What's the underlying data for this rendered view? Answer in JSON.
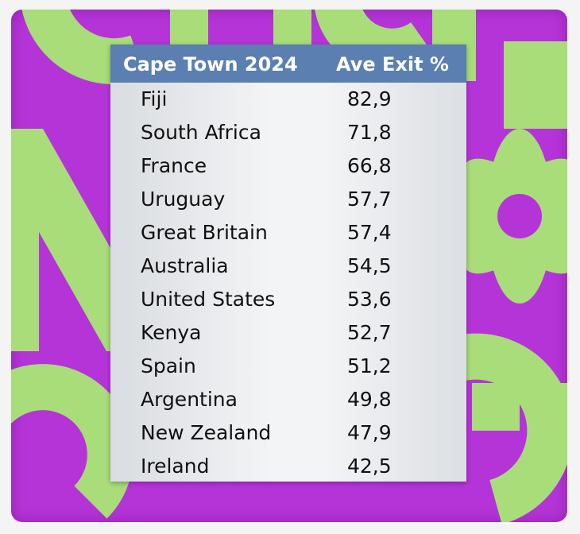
{
  "chart_data": {
    "type": "table",
    "columns": [
      "Cape Town 2024",
      "Ave Exit %"
    ],
    "rows": [
      {
        "country": "Fiji",
        "value": "82,9"
      },
      {
        "country": "South Africa",
        "value": "71,8"
      },
      {
        "country": "France",
        "value": "66,8"
      },
      {
        "country": "Uruguay",
        "value": "57,7"
      },
      {
        "country": "Great Britain",
        "value": "57,4"
      },
      {
        "country": "Australia",
        "value": "54,5"
      },
      {
        "country": "United States",
        "value": "53,6"
      },
      {
        "country": "Kenya",
        "value": "52,7"
      },
      {
        "country": "Spain",
        "value": "51,2"
      },
      {
        "country": "Argentina",
        "value": "49,8"
      },
      {
        "country": "New Zealand",
        "value": "47,9"
      },
      {
        "country": "Ireland",
        "value": "42,5"
      }
    ]
  },
  "colors": {
    "background": "#b534d8",
    "shapes": "#a8dd7a",
    "header": "#5a7fb0"
  }
}
